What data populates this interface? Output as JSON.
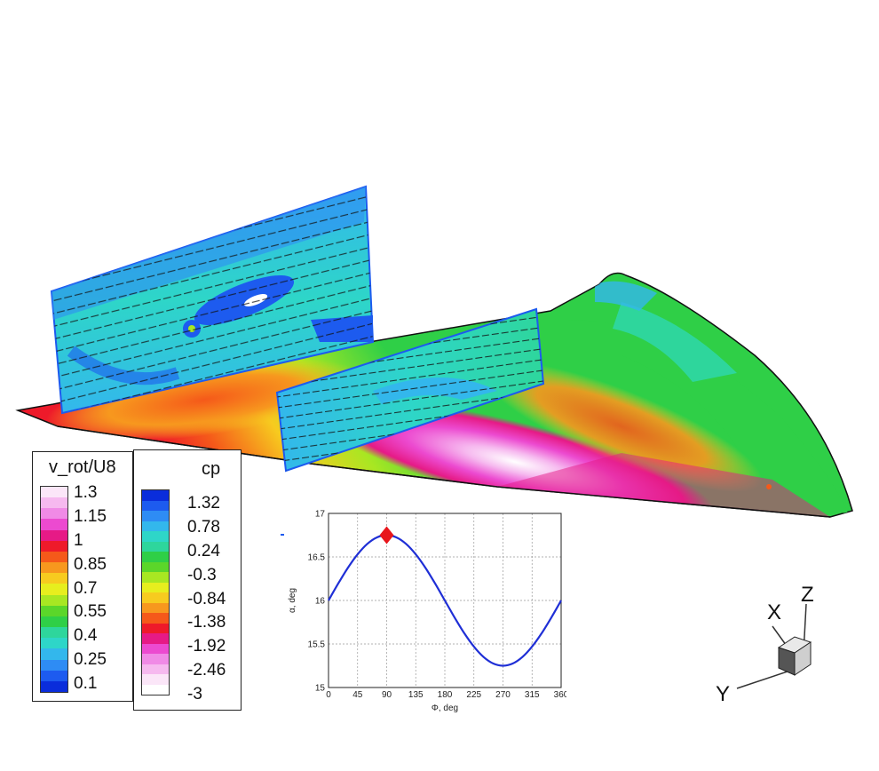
{
  "legends": {
    "vrot": {
      "title": "v_rot/U8",
      "labels": [
        "1.3",
        "1.15",
        "1",
        "0.85",
        "0.7",
        "0.55",
        "0.4",
        "0.25",
        "0.1"
      ],
      "colors": [
        "#fbe6f8",
        "#f6b9ef",
        "#f08ae6",
        "#ec4ad0",
        "#e61a86",
        "#ee1a2a",
        "#f5591a",
        "#f7981e",
        "#f7cb1f",
        "#e7ee1e",
        "#a8e722",
        "#5bd62a",
        "#2fcf47",
        "#2ed69c",
        "#2ed6c8",
        "#33b7ec",
        "#2e8cf4",
        "#1d5bef",
        "#0a2ddb"
      ]
    },
    "cp": {
      "title": "cp",
      "labels": [
        "1.32",
        "0.78",
        "0.24",
        "-0.3",
        "-0.84",
        "-1.38",
        "-1.92",
        "-2.46",
        "-3"
      ],
      "colors": [
        "#0a2ddb",
        "#1d5bef",
        "#2e8cf4",
        "#33b7ec",
        "#2ed6c8",
        "#2ed69c",
        "#2fcf47",
        "#5bd62a",
        "#a8e722",
        "#e7ee1e",
        "#f7cb1f",
        "#f7981e",
        "#f5591a",
        "#ee1a2a",
        "#e61a86",
        "#ec4ad0",
        "#f08ae6",
        "#f6b9ef",
        "#fbe6f8",
        "#ffffff"
      ]
    }
  },
  "chart_data": {
    "type": "line",
    "xlabel": "Φ, deg",
    "ylabel": "α, deg",
    "xticks": [
      "0",
      "45",
      "90",
      "135",
      "180",
      "225",
      "270",
      "315",
      "360"
    ],
    "yticks": [
      "15",
      "15.5",
      "16",
      "16.5",
      "17"
    ],
    "xlim": [
      0,
      360
    ],
    "ylim": [
      15,
      17
    ],
    "grid": true,
    "series": [
      {
        "color": "#1f2fd6",
        "x": [
          0,
          15,
          30,
          45,
          60,
          75,
          90,
          105,
          120,
          135,
          150,
          165,
          180,
          195,
          210,
          225,
          240,
          255,
          270,
          285,
          300,
          315,
          330,
          345,
          360
        ],
        "values": [
          16.0,
          16.194,
          16.375,
          16.53,
          16.65,
          16.725,
          16.75,
          16.725,
          16.65,
          16.53,
          16.375,
          16.194,
          16.0,
          15.806,
          15.625,
          15.47,
          15.35,
          15.275,
          15.25,
          15.275,
          15.35,
          15.47,
          15.625,
          15.806,
          16.0
        ]
      }
    ],
    "marker": {
      "x": 90,
      "y": 16.75,
      "color": "#e8161c",
      "shape": "diamond"
    }
  },
  "axes_triad": {
    "x": "X",
    "y": "Y",
    "z": "Z"
  }
}
